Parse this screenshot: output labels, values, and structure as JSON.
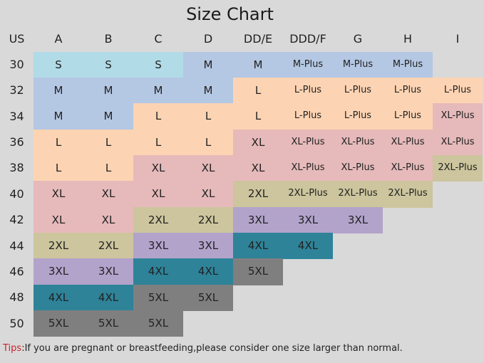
{
  "title": "Size Chart",
  "corner_label": "US",
  "columns": [
    "A",
    "B",
    "C",
    "D",
    "DD/E",
    "DDD/F",
    "G",
    "H",
    "I"
  ],
  "rows": [
    {
      "band": "30",
      "sizes": [
        "S",
        "S",
        "S",
        "M",
        "M",
        "M-Plus",
        "M-Plus",
        "M-Plus"
      ]
    },
    {
      "band": "32",
      "sizes": [
        "M",
        "M",
        "M",
        "M",
        "L",
        "L-Plus",
        "L-Plus",
        "L-Plus",
        "L-Plus"
      ]
    },
    {
      "band": "34",
      "sizes": [
        "M",
        "M",
        "L",
        "L",
        "L",
        "L-Plus",
        "L-Plus",
        "L-Plus",
        "XL-Plus"
      ]
    },
    {
      "band": "36",
      "sizes": [
        "L",
        "L",
        "L",
        "L",
        "XL",
        "XL-Plus",
        "XL-Plus",
        "XL-Plus",
        "XL-Plus"
      ]
    },
    {
      "band": "38",
      "sizes": [
        "L",
        "L",
        "XL",
        "XL",
        "XL",
        "XL-Plus",
        "XL-Plus",
        "XL-Plus",
        "2XL-Plus"
      ]
    },
    {
      "band": "40",
      "sizes": [
        "XL",
        "XL",
        "XL",
        "XL",
        "2XL",
        "2XL-Plus",
        "2XL-Plus",
        "2XL-Plus"
      ]
    },
    {
      "band": "42",
      "sizes": [
        "XL",
        "XL",
        "2XL",
        "2XL",
        "3XL",
        "3XL",
        "3XL"
      ]
    },
    {
      "band": "44",
      "sizes": [
        "2XL",
        "2XL",
        "3XL",
        "3XL",
        "4XL",
        "4XL"
      ]
    },
    {
      "band": "46",
      "sizes": [
        "3XL",
        "3XL",
        "4XL",
        "4XL",
        "5XL"
      ]
    },
    {
      "band": "48",
      "sizes": [
        "4XL",
        "4XL",
        "5XL",
        "5XL"
      ]
    },
    {
      "band": "50",
      "sizes": [
        "5XL",
        "5XL",
        "5XL"
      ]
    }
  ],
  "size_colors": {
    "S": "#b1dbe6",
    "M": "#b4c7e3",
    "L": "#fdd4b3",
    "XL": "#e6b9ba",
    "2XL": "#ccc59d",
    "3XL": "#b2a3cb",
    "4XL": "#2e8398",
    "5XL": "#7f7f7f"
  },
  "background_color": "#d9d9d9",
  "tips": {
    "label": "Tips",
    "text": ":If you are pregnant or breastfeeding,please consider one size larger than normal."
  }
}
